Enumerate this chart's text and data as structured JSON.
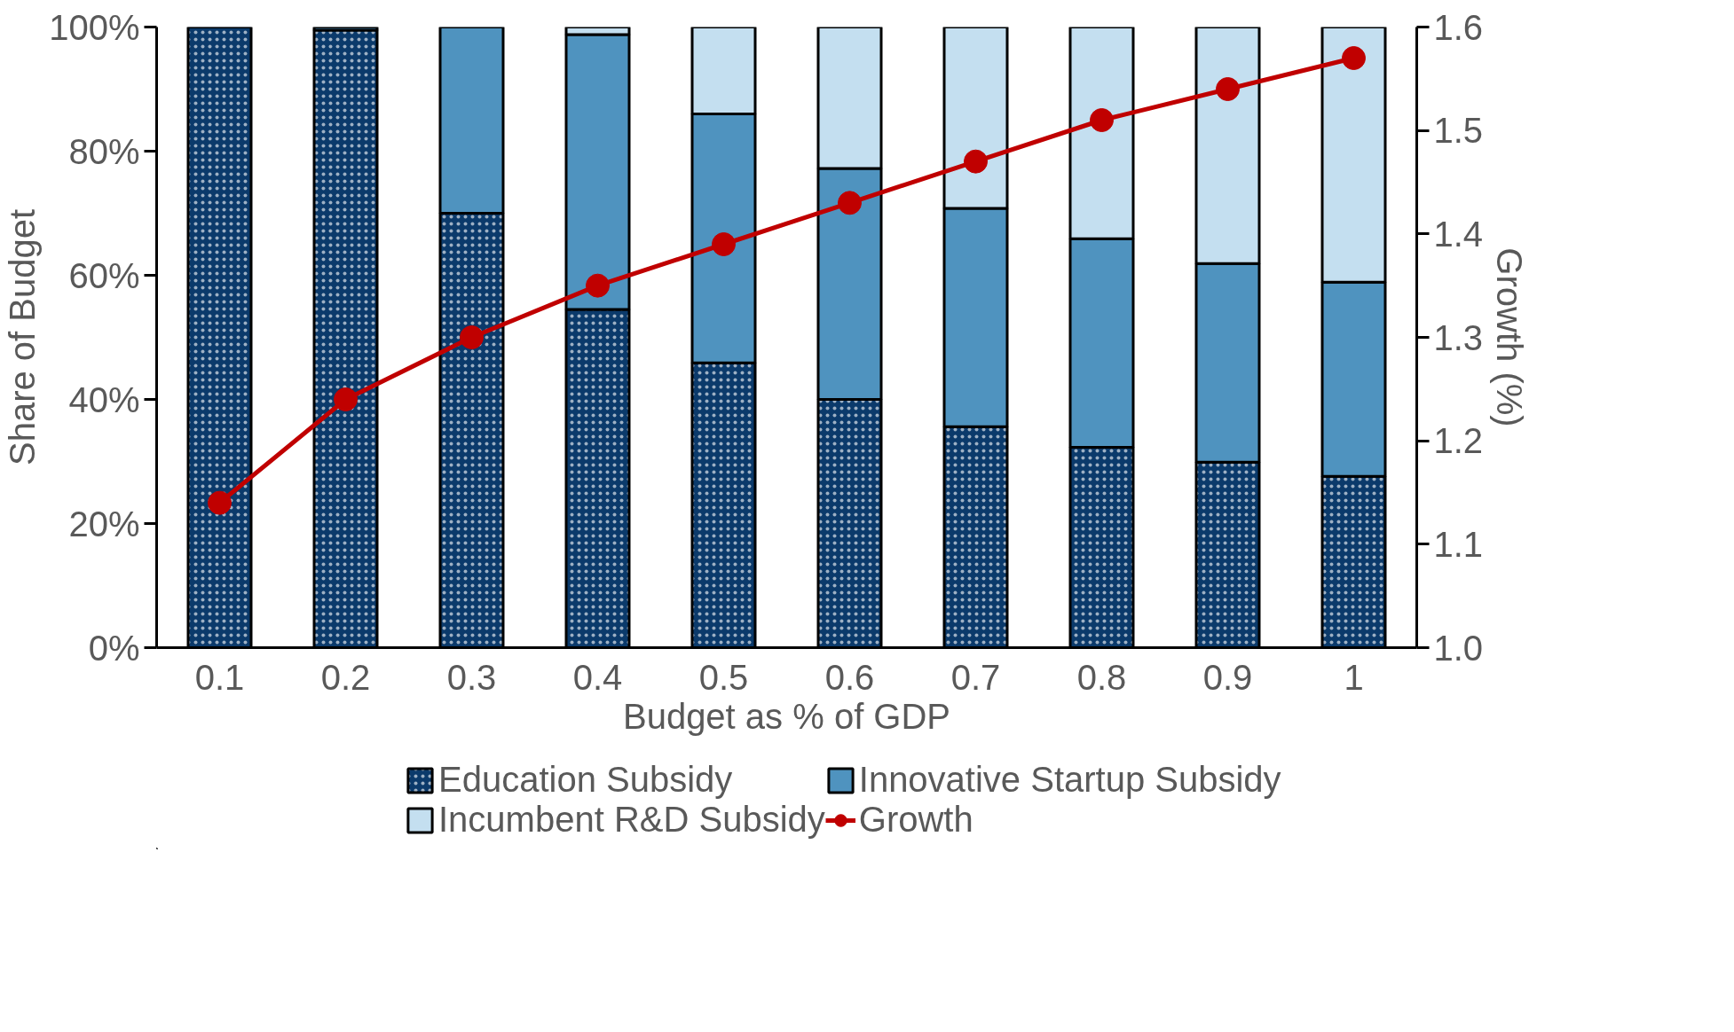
{
  "chart_data": {
    "type": "bar",
    "stacked": true,
    "xlabel": "Budget as % of GDP",
    "ylabel": "Share of Budget",
    "y2label": "Growth (%)",
    "categories": [
      "0.1",
      "0.2",
      "0.3",
      "0.4",
      "0.5",
      "0.6",
      "0.7",
      "0.8",
      "0.9",
      "1"
    ],
    "series": [
      {
        "name": "Education Subsidy",
        "color": "#0b3a6b",
        "values": [
          100,
          99.5,
          70,
          54.5,
          45.9,
          40,
          35.6,
          32.3,
          29.9,
          27.6
        ]
      },
      {
        "name": "Innovative Startup Subsidy",
        "color": "#4f93bf",
        "values": [
          0,
          0.5,
          30,
          44.3,
          40.1,
          37.2,
          35.2,
          33.6,
          32,
          31.3
        ]
      },
      {
        "name": "Incumbent R&D Subsidy",
        "color": "#c4dff0",
        "values": [
          0,
          0,
          0,
          1.2,
          14,
          22.8,
          29.2,
          34.1,
          38.1,
          41.1
        ]
      },
      {
        "name": "Growth",
        "type": "line",
        "axis": "y2",
        "color": "#c00000",
        "values": [
          1.14,
          1.24,
          1.3,
          1.35,
          1.39,
          1.43,
          1.47,
          1.51,
          1.54,
          1.57
        ]
      }
    ],
    "ylim": [
      0,
      100
    ],
    "yticks": [
      {
        "value": 0,
        "label": "0%"
      },
      {
        "value": 20,
        "label": "20%"
      },
      {
        "value": 40,
        "label": "40%"
      },
      {
        "value": 60,
        "label": "60%"
      },
      {
        "value": 80,
        "label": "80%"
      },
      {
        "value": 100,
        "label": "100%"
      }
    ],
    "y2lim": [
      1.0,
      1.6
    ],
    "y2ticks": [
      {
        "value": 1.0,
        "label": "1.0"
      },
      {
        "value": 1.1,
        "label": "1.1"
      },
      {
        "value": 1.2,
        "label": "1.2"
      },
      {
        "value": 1.3,
        "label": "1.3"
      },
      {
        "value": 1.4,
        "label": "1.4"
      },
      {
        "value": 1.5,
        "label": "1.5"
      },
      {
        "value": 1.6,
        "label": "1.6"
      }
    ],
    "legend": "bottom",
    "marker": "circle",
    "line_style": "solid",
    "grid": false
  }
}
